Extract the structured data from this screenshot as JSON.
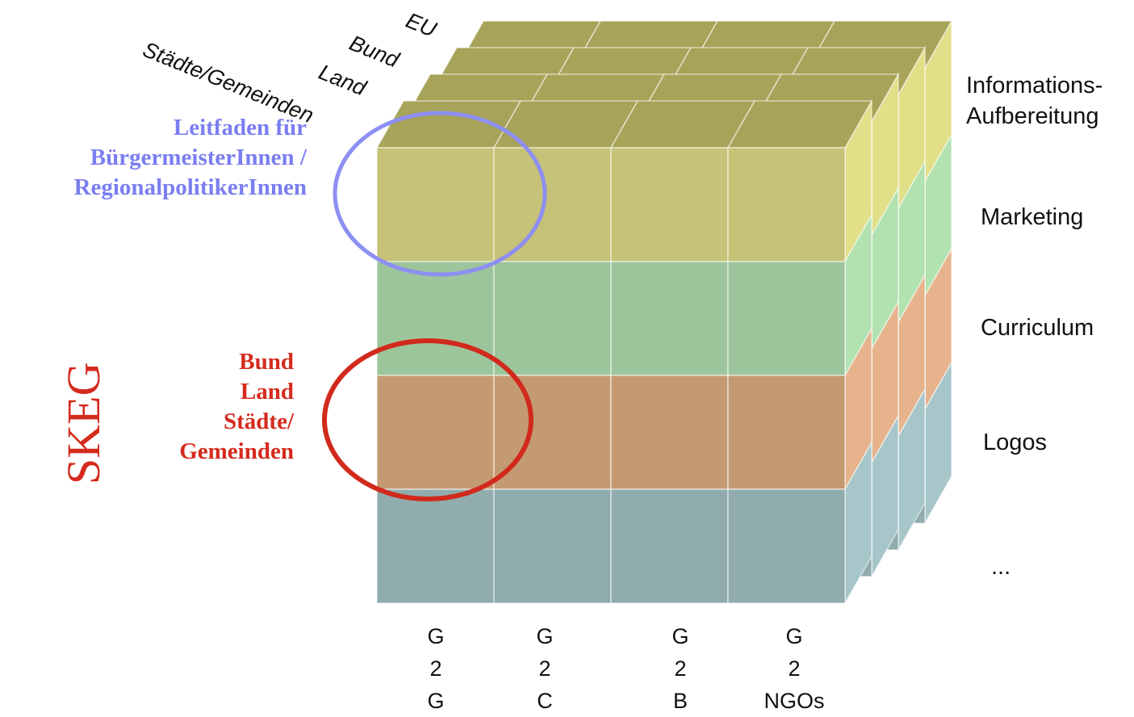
{
  "depth_labels": [
    "EU",
    "Bund",
    "Land",
    "Städte/Gemeinden"
  ],
  "layer_labels": [
    "Informations-",
    "Aufbereitung",
    "Marketing",
    "Curriculum",
    "Logos",
    "..."
  ],
  "column_labels": [
    [
      "G",
      "2",
      "G"
    ],
    [
      "G",
      "2",
      "C"
    ],
    [
      "G",
      "2",
      "B"
    ],
    [
      "G",
      "2",
      "NGOs"
    ]
  ],
  "annotation_blue": [
    "Leitfaden für",
    "BürgermeisterInnen /",
    "RegionalpolitikerInnen"
  ],
  "annotation_red": [
    "Bund",
    "Land",
    "Städte/",
    "Gemeinden"
  ],
  "vertical_label": "SKEG",
  "colors": {
    "yellow_front": "#c6c277",
    "yellow_top": "#a7a45a",
    "yellow_side": "#e1df88",
    "green_front": "#9dc59b",
    "green_side": "#b1e2af",
    "orange_front": "#c49a72",
    "orange_side": "#e6b38c",
    "blue_front": "#90acad",
    "blue_side": "#a7c6ca",
    "circle_blue": "#8d8ff2",
    "circle_red": "#d12a1c"
  }
}
